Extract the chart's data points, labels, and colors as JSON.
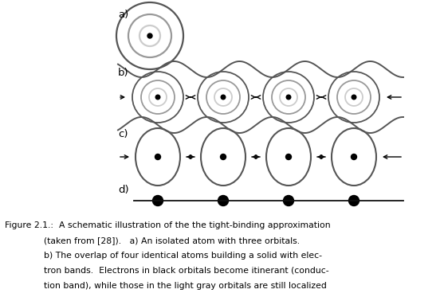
{
  "background": "#ffffff",
  "fig_width": 5.52,
  "fig_height": 3.78,
  "dpi": 100,
  "label_color": "#000000",
  "orbit_color_dark": "#555555",
  "orbit_color_mid": "#999999",
  "orbit_color_light": "#cccccc",
  "arrow_color": "#000000",
  "wave_color": "#555555",
  "line_color": "#111111",
  "dot_color": "#000000",
  "caption_fontsize": 7.8,
  "label_fontsize": 9.5,
  "panel_labels": [
    "a)",
    "b)",
    "c)",
    "d)"
  ],
  "caption_lines": [
    "Figure 2.1.:  A schematic illustration of the the tight-binding approximation",
    "              (taken from [28]).   a) An isolated atom with three orbitals.",
    "              b) The overlap of four identical atoms building a solid with elec-",
    "              tron bands.  Electrons in black orbitals become itinerant (conduc-",
    "              tion band), while those in the light gray orbitals are still localized"
  ]
}
